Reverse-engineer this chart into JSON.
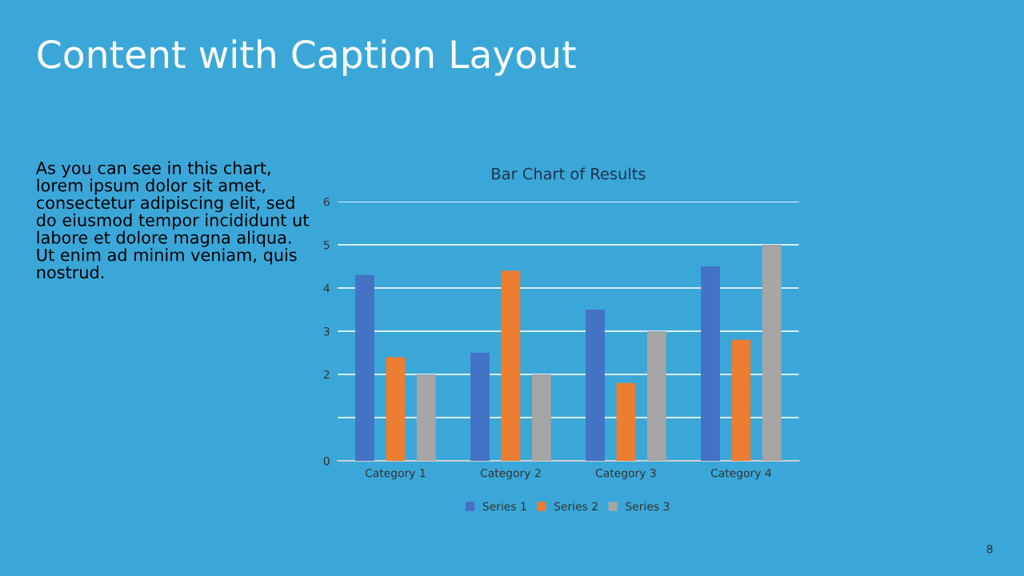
{
  "chart_data": {
    "type": "bar",
    "title": "Bar Chart of Results",
    "categories": [
      "Category 1",
      "Category 2",
      "Category 3",
      "Category 4"
    ],
    "series": [
      {
        "name": "Series 1",
        "color": "#4472c4",
        "values": [
          4.3,
          2.5,
          3.5,
          4.5
        ]
      },
      {
        "name": "Series 2",
        "color": "#ed7d31",
        "values": [
          2.4,
          4.4,
          1.8,
          2.8
        ]
      },
      {
        "name": "Series 3",
        "color": "#a5a5a5",
        "values": [
          2,
          2,
          3,
          5
        ]
      }
    ],
    "ylim": [
      0,
      6
    ],
    "yticks": [
      0,
      {
        "value": 1,
        "label": null
      },
      2,
      3,
      4,
      5,
      6
    ],
    "grid": "y",
    "legend": "bottom",
    "annotations": [
      "Content with Caption Layout",
      "As you can see in this chart, lorem ipsum dolor sit amet, consectetur adipiscing elit, sed do eiusmod tempor incididunt ut labore et dolore magna aliqua. Ut enim ad minim veniam, quis nostrud.",
      "8"
    ]
  }
}
